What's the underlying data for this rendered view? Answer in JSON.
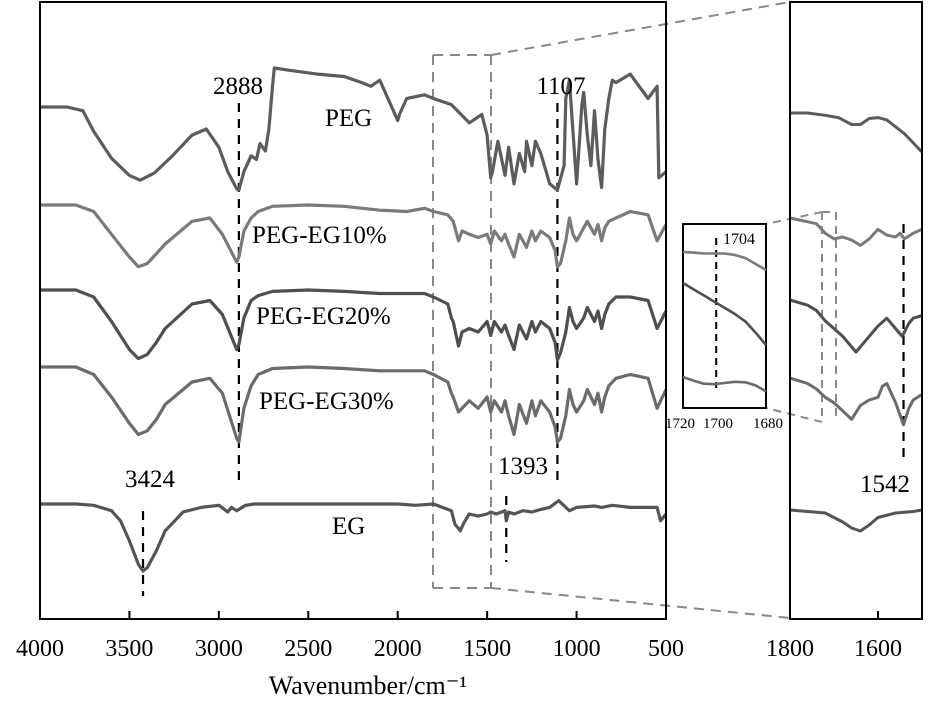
{
  "chart_data": [
    {
      "type": "line",
      "xlabel": "Wavenumber/cm⁻¹",
      "xlim": [
        4000,
        500
      ],
      "x_ticks": [
        "4000",
        "3500",
        "3000",
        "2500",
        "2000",
        "1500",
        "1000",
        "500"
      ],
      "series": [
        {
          "name": "PEG",
          "x": [
            4000,
            3850,
            3760,
            3700,
            3600,
            3500,
            3440,
            3360,
            3260,
            3150,
            3070,
            3000,
            2950,
            2900,
            2888,
            2860,
            2820,
            2790,
            2770,
            2740,
            2720,
            2700,
            2690,
            2600,
            2450,
            2300,
            2200,
            2150,
            2100,
            2000,
            1990,
            1950,
            1850,
            1800,
            1700,
            1600,
            1530,
            1500,
            1480,
            1470,
            1440,
            1400,
            1380,
            1350,
            1320,
            1290,
            1280,
            1250,
            1230,
            1200,
            1170,
            1150,
            1107,
            1070,
            1060,
            1040,
            1000,
            970,
            960,
            940,
            920,
            900,
            880,
            860,
            842,
            820,
            800,
            780,
            700,
            600,
            550,
            540,
            500
          ],
          "y": [
            0.32,
            0.32,
            0.35,
            0.52,
            0.74,
            0.88,
            0.92,
            0.86,
            0.72,
            0.55,
            0.5,
            0.65,
            0.85,
            0.99,
            1.0,
            0.85,
            0.72,
            0.75,
            0.62,
            0.68,
            0.5,
            0.15,
            0.0,
            0.02,
            0.05,
            0.07,
            0.12,
            0.15,
            0.1,
            0.43,
            0.38,
            0.25,
            0.22,
            0.25,
            0.3,
            0.45,
            0.38,
            0.55,
            0.9,
            0.85,
            0.6,
            0.88,
            0.65,
            0.95,
            0.7,
            0.85,
            0.6,
            0.8,
            0.6,
            0.7,
            0.85,
            0.95,
            1.0,
            0.8,
            0.25,
            0.1,
            0.95,
            0.3,
            0.2,
            0.55,
            0.8,
            0.35,
            0.75,
            0.98,
            0.5,
            0.25,
            0.1,
            0.12,
            0.05,
            0.25,
            0.15,
            0.9,
            0.85
          ]
        },
        {
          "name": "PEG-EG10%",
          "x": [
            4000,
            3800,
            3700,
            3600,
            3500,
            3450,
            3400,
            3350,
            3300,
            3150,
            3050,
            2980,
            2900,
            2888,
            2860,
            2820,
            2780,
            2700,
            2500,
            2300,
            2100,
            1950,
            1850,
            1800,
            1720,
            1690,
            1660,
            1640,
            1600,
            1550,
            1500,
            1480,
            1460,
            1420,
            1400,
            1380,
            1350,
            1320,
            1280,
            1250,
            1230,
            1200,
            1150,
            1120,
            1107,
            1090,
            1060,
            1040,
            1020,
            1000,
            960,
            940,
            900,
            880,
            860,
            842,
            820,
            780,
            700,
            600,
            550,
            500
          ],
          "y": [
            0.0,
            0.0,
            0.1,
            0.45,
            0.8,
            0.95,
            0.9,
            0.75,
            0.6,
            0.25,
            0.2,
            0.45,
            0.88,
            0.8,
            0.4,
            0.2,
            0.1,
            0.02,
            0.0,
            0.02,
            0.08,
            0.1,
            0.05,
            0.1,
            0.15,
            0.25,
            0.55,
            0.4,
            0.45,
            0.5,
            0.45,
            0.6,
            0.4,
            0.55,
            0.45,
            0.6,
            0.8,
            0.45,
            0.65,
            0.4,
            0.55,
            0.4,
            0.5,
            0.7,
            0.95,
            0.9,
            0.55,
            0.2,
            0.45,
            0.55,
            0.35,
            0.25,
            0.45,
            0.3,
            0.55,
            0.35,
            0.25,
            0.2,
            0.1,
            0.15,
            0.55,
            0.3
          ]
        },
        {
          "name": "PEG-EG20%",
          "x": [
            4000,
            3800,
            3700,
            3600,
            3500,
            3450,
            3400,
            3350,
            3300,
            3150,
            3050,
            2980,
            2900,
            2888,
            2860,
            2820,
            2780,
            2700,
            2500,
            2300,
            2100,
            1950,
            1850,
            1800,
            1720,
            1700,
            1690,
            1660,
            1640,
            1600,
            1550,
            1500,
            1480,
            1460,
            1420,
            1400,
            1380,
            1350,
            1320,
            1280,
            1250,
            1230,
            1200,
            1150,
            1120,
            1107,
            1090,
            1060,
            1040,
            1020,
            1000,
            960,
            940,
            900,
            880,
            860,
            842,
            820,
            780,
            700,
            600,
            550,
            500
          ],
          "y": [
            0.0,
            0.0,
            0.1,
            0.45,
            0.85,
            0.98,
            0.92,
            0.75,
            0.55,
            0.2,
            0.15,
            0.35,
            0.85,
            0.78,
            0.4,
            0.15,
            0.08,
            0.02,
            0.0,
            0.02,
            0.05,
            0.05,
            0.05,
            0.1,
            0.2,
            0.4,
            0.45,
            0.8,
            0.6,
            0.55,
            0.6,
            0.45,
            0.65,
            0.45,
            0.6,
            0.5,
            0.65,
            0.85,
            0.5,
            0.7,
            0.45,
            0.6,
            0.45,
            0.55,
            0.75,
            1.0,
            0.9,
            0.6,
            0.25,
            0.45,
            0.55,
            0.4,
            0.25,
            0.45,
            0.3,
            0.55,
            0.35,
            0.2,
            0.1,
            0.1,
            0.15,
            0.55,
            0.3
          ]
        },
        {
          "name": "PEG-EG30%",
          "x": [
            4000,
            3800,
            3700,
            3600,
            3500,
            3450,
            3400,
            3350,
            3300,
            3150,
            3050,
            2980,
            2900,
            2888,
            2860,
            2820,
            2780,
            2700,
            2500,
            2300,
            2100,
            1950,
            1850,
            1800,
            1720,
            1700,
            1690,
            1660,
            1640,
            1600,
            1550,
            1500,
            1480,
            1460,
            1420,
            1400,
            1380,
            1350,
            1320,
            1280,
            1250,
            1230,
            1200,
            1150,
            1120,
            1107,
            1090,
            1060,
            1040,
            1020,
            1000,
            960,
            940,
            900,
            880,
            860,
            842,
            820,
            780,
            700,
            600,
            550,
            500
          ],
          "y": [
            0.0,
            0.0,
            0.1,
            0.4,
            0.75,
            0.9,
            0.85,
            0.7,
            0.5,
            0.2,
            0.15,
            0.35,
            0.95,
            1.0,
            0.55,
            0.25,
            0.1,
            0.02,
            0.0,
            0.02,
            0.05,
            0.05,
            0.05,
            0.1,
            0.2,
            0.35,
            0.4,
            0.6,
            0.55,
            0.45,
            0.55,
            0.4,
            0.6,
            0.45,
            0.6,
            0.45,
            0.65,
            0.9,
            0.5,
            0.75,
            0.45,
            0.65,
            0.45,
            0.6,
            0.8,
            1.0,
            0.95,
            0.65,
            0.3,
            0.5,
            0.6,
            0.45,
            0.3,
            0.5,
            0.35,
            0.6,
            0.4,
            0.25,
            0.15,
            0.1,
            0.15,
            0.55,
            0.3
          ]
        },
        {
          "name": "EG",
          "x": [
            4000,
            3800,
            3700,
            3600,
            3550,
            3500,
            3450,
            3424,
            3400,
            3350,
            3300,
            3200,
            3100,
            3000,
            2950,
            2930,
            2900,
            2870,
            2850,
            2800,
            2600,
            2400,
            2200,
            2000,
            1900,
            1800,
            1750,
            1700,
            1680,
            1650,
            1630,
            1600,
            1550,
            1500,
            1480,
            1450,
            1400,
            1393,
            1380,
            1350,
            1300,
            1250,
            1200,
            1150,
            1100,
            1080,
            1060,
            1040,
            1000,
            900,
            860,
            800,
            700,
            600,
            550,
            530,
            500
          ],
          "y": [
            0.0,
            0.0,
            0.02,
            0.1,
            0.25,
            0.55,
            0.9,
            1.0,
            0.95,
            0.7,
            0.4,
            0.12,
            0.05,
            0.02,
            0.12,
            0.05,
            0.1,
            0.05,
            0.02,
            0.0,
            0.0,
            0.0,
            0.0,
            0.0,
            0.02,
            0.0,
            0.05,
            0.1,
            0.3,
            0.4,
            0.28,
            0.15,
            0.18,
            0.15,
            0.12,
            0.15,
            0.1,
            0.25,
            0.12,
            0.15,
            0.1,
            0.12,
            0.08,
            0.05,
            -0.05,
            0.0,
            0.05,
            0.1,
            0.05,
            0.03,
            0.05,
            0.02,
            0.05,
            0.05,
            0.05,
            0.25,
            0.15
          ]
        }
      ],
      "annotations": [
        {
          "text": "2888",
          "x": 2888
        },
        {
          "text": "1107",
          "x": 1107
        },
        {
          "text": "3424",
          "x": 3424
        },
        {
          "text": "1393",
          "x": 1393
        }
      ]
    },
    {
      "type": "line",
      "xlim": [
        1720,
        1680
      ],
      "x_ticks": [
        "1720",
        "1700",
        "1680"
      ],
      "annotations": [
        {
          "text": "1704",
          "x": 1704
        }
      ],
      "series": [
        {
          "x": [
            1720,
            1715,
            1710,
            1705,
            1700,
            1695,
            1690,
            1685,
            1680
          ],
          "y": [
            0.0,
            0.02,
            0.05,
            0.05,
            0.05,
            0.1,
            0.2,
            0.4,
            0.6
          ]
        },
        {
          "x": [
            1720,
            1715,
            1710,
            1705,
            1700,
            1695,
            1690,
            1685,
            1680
          ],
          "y": [
            0.0,
            0.1,
            0.2,
            0.3,
            0.4,
            0.5,
            0.62,
            0.8,
            1.0
          ]
        },
        {
          "x": [
            1720,
            1715,
            1710,
            1705,
            1700,
            1695,
            1690,
            1685,
            1680
          ],
          "y": [
            0.0,
            0.15,
            0.28,
            0.3,
            0.25,
            0.2,
            0.22,
            0.35,
            0.6
          ]
        }
      ]
    },
    {
      "type": "line",
      "xlim": [
        1800,
        1500
      ],
      "x_ticks": [
        "1800",
        "1600"
      ],
      "annotations": [
        {
          "text": "1542",
          "x": 1542
        }
      ],
      "series": [
        {
          "x": [
            1800,
            1760,
            1720,
            1690,
            1660,
            1640,
            1620,
            1600,
            1580,
            1560,
            1540,
            1520,
            1500
          ],
          "y": [
            0.0,
            0.0,
            0.05,
            0.1,
            0.25,
            0.25,
            0.12,
            0.1,
            0.15,
            0.3,
            0.45,
            0.65,
            0.85
          ]
        },
        {
          "x": [
            1800,
            1780,
            1760,
            1740,
            1720,
            1700,
            1680,
            1660,
            1640,
            1620,
            1600,
            1580,
            1560,
            1550,
            1540,
            1520,
            1500
          ],
          "y": [
            0.0,
            0.05,
            0.1,
            0.15,
            0.4,
            0.55,
            0.5,
            0.58,
            0.72,
            0.55,
            0.3,
            0.45,
            0.5,
            0.4,
            0.55,
            0.4,
            0.3
          ]
        },
        {
          "x": [
            1800,
            1780,
            1760,
            1740,
            1720,
            1700,
            1680,
            1660,
            1650,
            1640,
            1620,
            1600,
            1580,
            1560,
            1545,
            1530,
            1520,
            1500
          ],
          "y": [
            0.0,
            0.05,
            0.1,
            0.2,
            0.4,
            0.55,
            0.7,
            0.9,
            1.0,
            0.9,
            0.7,
            0.5,
            0.35,
            0.55,
            0.7,
            0.45,
            0.35,
            0.3
          ]
        },
        {
          "x": [
            1800,
            1780,
            1760,
            1740,
            1720,
            1700,
            1680,
            1660,
            1640,
            1620,
            1600,
            1590,
            1580,
            1560,
            1542,
            1530,
            1520,
            1500
          ],
          "y": [
            0.0,
            0.05,
            0.1,
            0.2,
            0.35,
            0.45,
            0.6,
            0.75,
            0.5,
            0.4,
            0.35,
            0.15,
            0.1,
            0.45,
            0.85,
            0.55,
            0.4,
            0.3
          ]
        },
        {
          "x": [
            1800,
            1760,
            1720,
            1680,
            1660,
            1640,
            1620,
            1600,
            1560,
            1520,
            1500
          ],
          "y": [
            0.0,
            0.05,
            0.1,
            0.4,
            0.6,
            0.7,
            0.5,
            0.25,
            0.1,
            0.05,
            0.0
          ]
        }
      ]
    }
  ]
}
